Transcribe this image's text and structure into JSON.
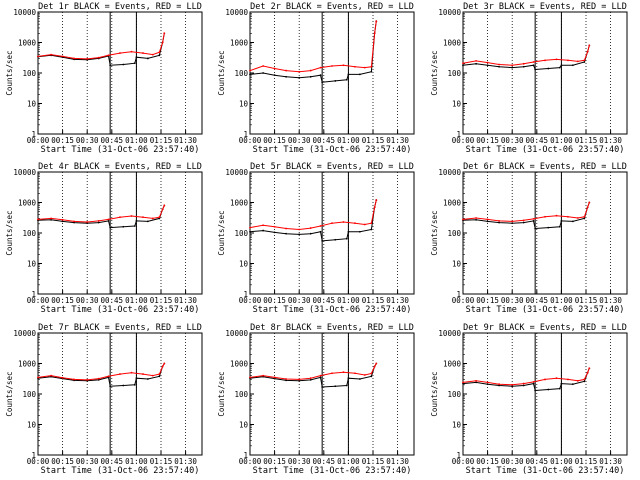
{
  "figure": {
    "colors": {
      "events": "#000000",
      "lld": "#ff0000",
      "background": "#ffffff"
    },
    "xlabel": "Start Time (31-Oct-06 23:57:40)",
    "ylabel": "Counts/sec",
    "x_ticks": [
      "00:00",
      "00:15",
      "00:30",
      "00:45",
      "01:00",
      "01:15",
      "01:30"
    ],
    "y_ticks": [
      "1",
      "10",
      "100",
      "1000",
      "10000"
    ]
  },
  "chart_data": [
    {
      "type": "line",
      "title": "Det 1r BLACK = Events, RED = LLD",
      "xlabel": "Start Time (31-Oct-06 23:57:40)",
      "ylabel": "Counts/sec",
      "ylim": [
        1,
        10000
      ],
      "xlim": [
        "00:00",
        "01:40"
      ],
      "y_scale": "log",
      "series": [
        {
          "color": "#000000",
          "x": [
            "00:00",
            "00:08",
            "00:15",
            "00:22",
            "00:30",
            "00:37",
            "00:43",
            "00:44",
            "00:52",
            "00:59",
            "01:00",
            "01:07",
            "01:14",
            "01:16",
            "01:17"
          ],
          "values": [
            340,
            380,
            330,
            280,
            270,
            300,
            360,
            180,
            190,
            210,
            330,
            300,
            380,
            1000,
            2000
          ]
        },
        {
          "color": "#ff0000",
          "x": [
            "00:00",
            "00:08",
            "00:15",
            "00:22",
            "00:30",
            "00:37",
            "00:43",
            "00:50",
            "00:57",
            "01:04",
            "01:10",
            "01:14",
            "01:16",
            "01:17"
          ],
          "values": [
            350,
            400,
            350,
            300,
            290,
            320,
            380,
            450,
            500,
            450,
            400,
            480,
            1000,
            2000
          ]
        }
      ]
    },
    {
      "type": "line",
      "title": "Det 2r BLACK = Events, RED = LLD",
      "xlabel": "Start Time (31-Oct-06 23:57:40)",
      "ylabel": "Counts/sec",
      "ylim": [
        1,
        10000
      ],
      "xlim": [
        "00:00",
        "01:40"
      ],
      "y_scale": "log",
      "series": [
        {
          "color": "#000000",
          "x": [
            "00:00",
            "00:08",
            "00:15",
            "00:22",
            "00:30",
            "00:37",
            "00:43",
            "00:44",
            "00:52",
            "00:59",
            "01:00",
            "01:07",
            "01:14",
            "01:16",
            "01:17"
          ],
          "values": [
            90,
            100,
            85,
            75,
            70,
            75,
            85,
            50,
            55,
            60,
            90,
            90,
            110,
            2000,
            5000
          ]
        },
        {
          "color": "#ff0000",
          "x": [
            "00:00",
            "00:08",
            "00:15",
            "00:22",
            "00:30",
            "00:37",
            "00:43",
            "00:50",
            "00:57",
            "01:04",
            "01:10",
            "01:14",
            "01:16",
            "01:17"
          ],
          "values": [
            120,
            170,
            140,
            120,
            110,
            120,
            150,
            170,
            180,
            160,
            150,
            160,
            2000,
            5000
          ]
        }
      ]
    },
    {
      "type": "line",
      "title": "Det 3r BLACK = Events, RED = LLD",
      "xlabel": "Start Time (31-Oct-06 23:57:40)",
      "ylabel": "Counts/sec",
      "ylim": [
        1,
        10000
      ],
      "xlim": [
        "00:00",
        "01:40"
      ],
      "y_scale": "log",
      "series": [
        {
          "color": "#000000",
          "x": [
            "00:00",
            "00:08",
            "00:15",
            "00:22",
            "00:30",
            "00:37",
            "00:43",
            "00:44",
            "00:52",
            "00:59",
            "01:00",
            "01:07",
            "01:14",
            "01:16",
            "01:17"
          ],
          "values": [
            180,
            200,
            180,
            160,
            150,
            160,
            180,
            130,
            140,
            150,
            180,
            180,
            230,
            500,
            800
          ]
        },
        {
          "color": "#ff0000",
          "x": [
            "00:00",
            "00:08",
            "00:15",
            "00:22",
            "00:30",
            "00:37",
            "00:43",
            "00:50",
            "00:57",
            "01:04",
            "01:10",
            "01:14",
            "01:16",
            "01:17"
          ],
          "values": [
            210,
            250,
            220,
            190,
            180,
            200,
            230,
            260,
            280,
            260,
            240,
            260,
            500,
            800
          ]
        }
      ]
    },
    {
      "type": "line",
      "title": "Det 4r BLACK = Events, RED = LLD",
      "xlabel": "Start Time (31-Oct-06 23:57:40)",
      "ylabel": "Counts/sec",
      "ylim": [
        1,
        10000
      ],
      "xlim": [
        "00:00",
        "01:40"
      ],
      "y_scale": "log",
      "series": [
        {
          "color": "#000000",
          "x": [
            "00:00",
            "00:08",
            "00:15",
            "00:22",
            "00:30",
            "00:37",
            "00:43",
            "00:44",
            "00:52",
            "00:59",
            "01:00",
            "01:07",
            "01:14",
            "01:16",
            "01:17"
          ],
          "values": [
            260,
            270,
            240,
            220,
            210,
            220,
            250,
            150,
            160,
            170,
            250,
            240,
            300,
            600,
            800
          ]
        },
        {
          "color": "#ff0000",
          "x": [
            "00:00",
            "00:08",
            "00:15",
            "00:22",
            "00:30",
            "00:37",
            "00:43",
            "00:50",
            "00:57",
            "01:04",
            "01:10",
            "01:14",
            "01:16",
            "01:17"
          ],
          "values": [
            280,
            300,
            270,
            240,
            230,
            250,
            280,
            330,
            360,
            330,
            300,
            330,
            600,
            800
          ]
        }
      ]
    },
    {
      "type": "line",
      "title": "Det 5r BLACK = Events, RED = LLD",
      "xlabel": "Start Time (31-Oct-06 23:57:40)",
      "ylabel": "Counts/sec",
      "ylim": [
        1,
        10000
      ],
      "xlim": [
        "00:00",
        "01:40"
      ],
      "y_scale": "log",
      "series": [
        {
          "color": "#000000",
          "x": [
            "00:00",
            "00:08",
            "00:15",
            "00:22",
            "00:30",
            "00:37",
            "00:43",
            "00:44",
            "00:52",
            "00:59",
            "01:00",
            "01:07",
            "01:14",
            "01:16",
            "01:17"
          ],
          "values": [
            110,
            120,
            105,
            95,
            90,
            95,
            110,
            55,
            60,
            65,
            110,
            110,
            130,
            700,
            1200
          ]
        },
        {
          "color": "#ff0000",
          "x": [
            "00:00",
            "00:08",
            "00:15",
            "00:22",
            "00:30",
            "00:37",
            "00:43",
            "00:50",
            "00:57",
            "01:04",
            "01:10",
            "01:14",
            "01:16",
            "01:17"
          ],
          "values": [
            150,
            180,
            160,
            140,
            130,
            145,
            170,
            210,
            230,
            210,
            190,
            210,
            700,
            1200
          ]
        }
      ]
    },
    {
      "type": "line",
      "title": "Det 6r BLACK = Events, RED = LLD",
      "xlabel": "Start Time (31-Oct-06 23:57:40)",
      "ylabel": "Counts/sec",
      "ylim": [
        1,
        10000
      ],
      "xlim": [
        "00:00",
        "01:40"
      ],
      "y_scale": "log",
      "series": [
        {
          "color": "#000000",
          "x": [
            "00:00",
            "00:08",
            "00:15",
            "00:22",
            "00:30",
            "00:37",
            "00:43",
            "00:44",
            "00:52",
            "00:59",
            "01:00",
            "01:07",
            "01:14",
            "01:16",
            "01:17"
          ],
          "values": [
            260,
            270,
            240,
            220,
            210,
            220,
            250,
            140,
            150,
            160,
            250,
            240,
            300,
            700,
            1000
          ]
        },
        {
          "color": "#ff0000",
          "x": [
            "00:00",
            "00:08",
            "00:15",
            "00:22",
            "00:30",
            "00:37",
            "00:43",
            "00:50",
            "00:57",
            "01:04",
            "01:10",
            "01:14",
            "01:16",
            "01:17"
          ],
          "values": [
            280,
            310,
            280,
            250,
            240,
            260,
            290,
            340,
            370,
            340,
            310,
            340,
            700,
            1000
          ]
        }
      ]
    },
    {
      "type": "line",
      "title": "Det 7r BLACK = Events, RED = LLD",
      "xlabel": "Start Time (31-Oct-06 23:57:40)",
      "ylabel": "Counts/sec",
      "ylim": [
        1,
        10000
      ],
      "xlim": [
        "00:00",
        "01:40"
      ],
      "y_scale": "log",
      "series": [
        {
          "color": "#000000",
          "x": [
            "00:00",
            "00:08",
            "00:15",
            "00:22",
            "00:30",
            "00:37",
            "00:43",
            "00:44",
            "00:52",
            "00:59",
            "01:00",
            "01:07",
            "01:14",
            "01:16",
            "01:17"
          ],
          "values": [
            330,
            370,
            320,
            280,
            270,
            290,
            350,
            180,
            190,
            200,
            330,
            310,
            380,
            800,
            1000
          ]
        },
        {
          "color": "#ff0000",
          "x": [
            "00:00",
            "00:08",
            "00:15",
            "00:22",
            "00:30",
            "00:37",
            "00:43",
            "00:50",
            "00:57",
            "01:04",
            "01:10",
            "01:14",
            "01:16",
            "01:17"
          ],
          "values": [
            350,
            400,
            340,
            300,
            290,
            320,
            380,
            450,
            500,
            450,
            400,
            450,
            800,
            1000
          ]
        }
      ]
    },
    {
      "type": "line",
      "title": "Det 8r BLACK = Events, RED = LLD",
      "xlabel": "Start Time (31-Oct-06 23:57:40)",
      "ylabel": "Counts/sec",
      "ylim": [
        1,
        10000
      ],
      "xlim": [
        "00:00",
        "01:40"
      ],
      "y_scale": "log",
      "series": [
        {
          "color": "#000000",
          "x": [
            "00:00",
            "00:08",
            "00:15",
            "00:22",
            "00:30",
            "00:37",
            "00:43",
            "00:44",
            "00:52",
            "00:59",
            "01:00",
            "01:07",
            "01:14",
            "01:16",
            "01:17"
          ],
          "values": [
            330,
            370,
            320,
            280,
            270,
            290,
            350,
            170,
            180,
            190,
            330,
            310,
            380,
            800,
            1000
          ]
        },
        {
          "color": "#ff0000",
          "x": [
            "00:00",
            "00:08",
            "00:15",
            "00:22",
            "00:30",
            "00:37",
            "00:43",
            "00:50",
            "00:57",
            "01:04",
            "01:10",
            "01:14",
            "01:16",
            "01:17"
          ],
          "values": [
            350,
            400,
            350,
            310,
            300,
            330,
            400,
            480,
            520,
            480,
            420,
            470,
            800,
            1000
          ]
        }
      ]
    },
    {
      "type": "line",
      "title": "Det 9r BLACK = Events, RED = LLD",
      "xlabel": "Start Time (31-Oct-06 23:57:40)",
      "ylabel": "Counts/sec",
      "ylim": [
        1,
        10000
      ],
      "xlim": [
        "00:00",
        "01:40"
      ],
      "y_scale": "log",
      "series": [
        {
          "color": "#000000",
          "x": [
            "00:00",
            "00:08",
            "00:15",
            "00:22",
            "00:30",
            "00:37",
            "00:43",
            "00:44",
            "00:52",
            "00:59",
            "01:00",
            "01:07",
            "01:14",
            "01:16",
            "01:17"
          ],
          "values": [
            220,
            240,
            210,
            190,
            180,
            190,
            220,
            130,
            140,
            150,
            220,
            210,
            260,
            500,
            700
          ]
        },
        {
          "color": "#ff0000",
          "x": [
            "00:00",
            "00:08",
            "00:15",
            "00:22",
            "00:30",
            "00:37",
            "00:43",
            "00:50",
            "00:57",
            "01:04",
            "01:10",
            "01:14",
            "01:16",
            "01:17"
          ],
          "values": [
            240,
            270,
            240,
            210,
            200,
            220,
            250,
            300,
            330,
            300,
            270,
            300,
            500,
            700
          ]
        }
      ]
    }
  ]
}
